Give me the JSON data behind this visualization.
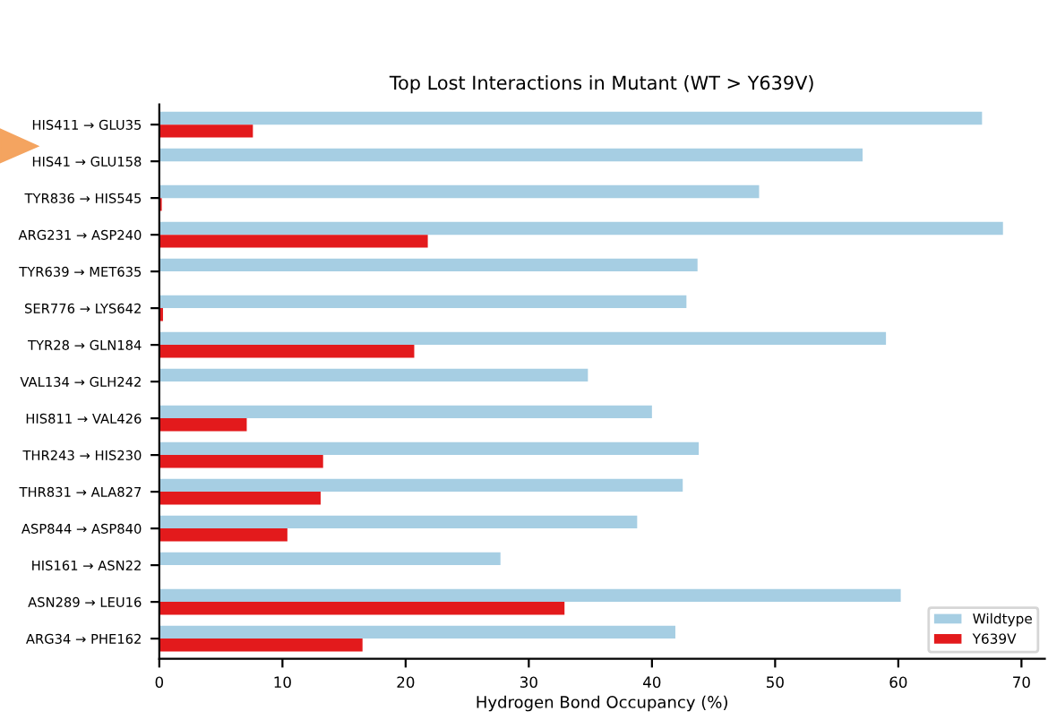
{
  "chart_data": {
    "type": "bar",
    "orientation": "horizontal",
    "title": "Top Lost Interactions in Mutant (WT > Y639V)",
    "xlabel": "Hydrogen Bond Occupancy (%)",
    "categories": [
      "HIS411 → GLU35",
      "HIS41 → GLU158",
      "TYR836 → HIS545",
      "ARG231 → ASP240",
      "TYR639 → MET635",
      "SER776 → LYS642",
      "TYR28 → GLN184",
      "VAL134 → GLH242",
      "HIS811 → VAL426",
      "THR243 → HIS230",
      "THR831 → ALA827",
      "ASP844 → ASP840",
      "HIS161 → ASN22",
      "ASN289 → LEU16",
      "ARG34 → PHE162"
    ],
    "series": [
      {
        "name": "Wildtype",
        "color": "#a6cee3",
        "values": [
          66.8,
          57.1,
          48.7,
          68.5,
          43.7,
          42.8,
          59.0,
          34.8,
          40.0,
          43.8,
          42.5,
          38.8,
          27.7,
          60.2,
          41.9
        ]
      },
      {
        "name": "Y639V",
        "color": "#e31a1c",
        "values": [
          7.6,
          0,
          0.2,
          21.8,
          0,
          0.3,
          20.7,
          0,
          7.1,
          13.3,
          13.1,
          10.4,
          0,
          32.9,
          16.5
        ]
      }
    ],
    "xlim": [
      0,
      71.9
    ],
    "xticks": [
      0,
      10,
      20,
      30,
      40,
      50,
      60,
      70
    ],
    "legend": "bottom right",
    "grid": false
  }
}
